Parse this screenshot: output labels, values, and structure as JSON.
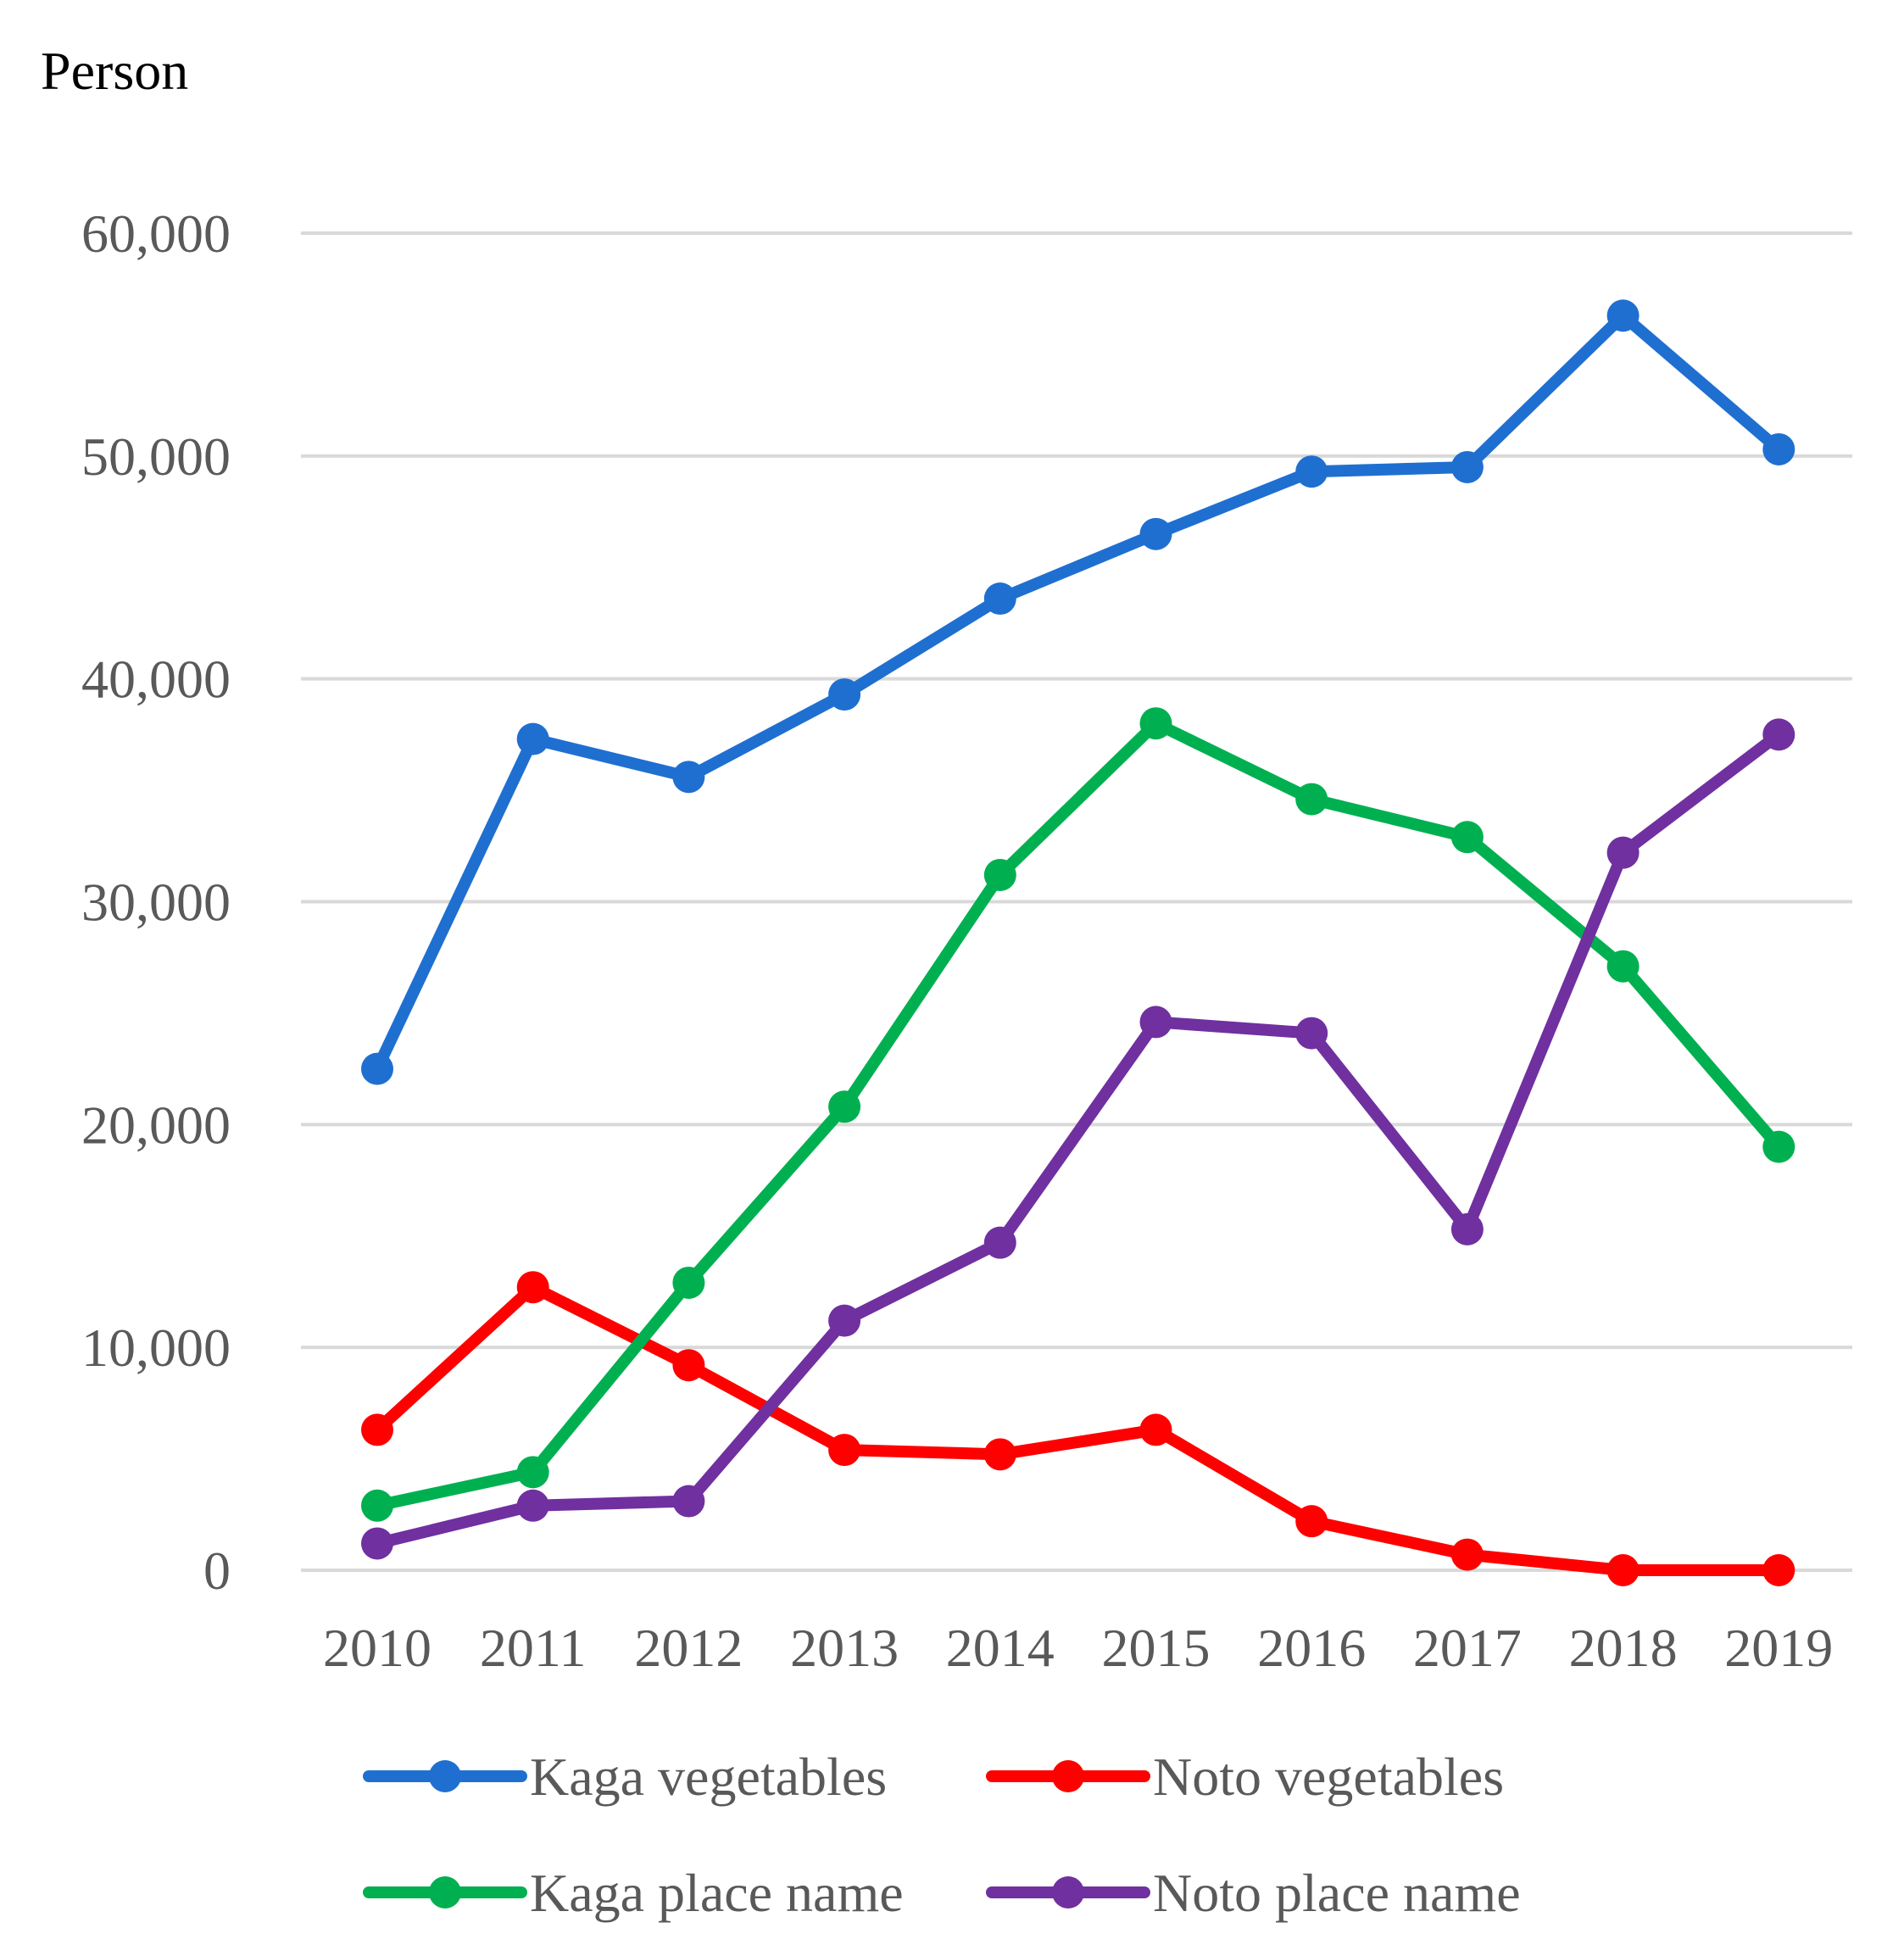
{
  "chart_data": {
    "type": "line",
    "title": "",
    "ylabel": "Person",
    "xlabel": "",
    "categories": [
      "2010",
      "2011",
      "2012",
      "2013",
      "2014",
      "2015",
      "2016",
      "2017",
      "2018",
      "2019"
    ],
    "ylim": [
      0,
      60000
    ],
    "yticks": [
      0,
      10000,
      20000,
      30000,
      40000,
      50000,
      60000
    ],
    "ytick_labels": [
      "0",
      "10,000",
      "20,000",
      "30,000",
      "40,000",
      "50,000",
      "60,000"
    ],
    "grid": true,
    "legend_position": "bottom",
    "series": [
      {
        "name": "Kaga vegetables",
        "color": "#1f6fd1",
        "values": [
          22500,
          37300,
          35600,
          39300,
          43600,
          46500,
          49300,
          49500,
          56300,
          50300
        ]
      },
      {
        "name": "Noto vegetables",
        "color": "#ff0000",
        "values": [
          6300,
          12700,
          9200,
          5400,
          5200,
          6300,
          2200,
          700,
          0,
          0
        ]
      },
      {
        "name": "Kaga place name",
        "color": "#00b050",
        "values": [
          2900,
          4400,
          12900,
          20800,
          31200,
          38000,
          34600,
          32900,
          27100,
          19000
        ]
      },
      {
        "name": "Noto place name",
        "color": "#7030a0",
        "values": [
          1200,
          2900,
          3100,
          11200,
          14700,
          24600,
          24100,
          15300,
          32200,
          37500
        ]
      }
    ]
  }
}
